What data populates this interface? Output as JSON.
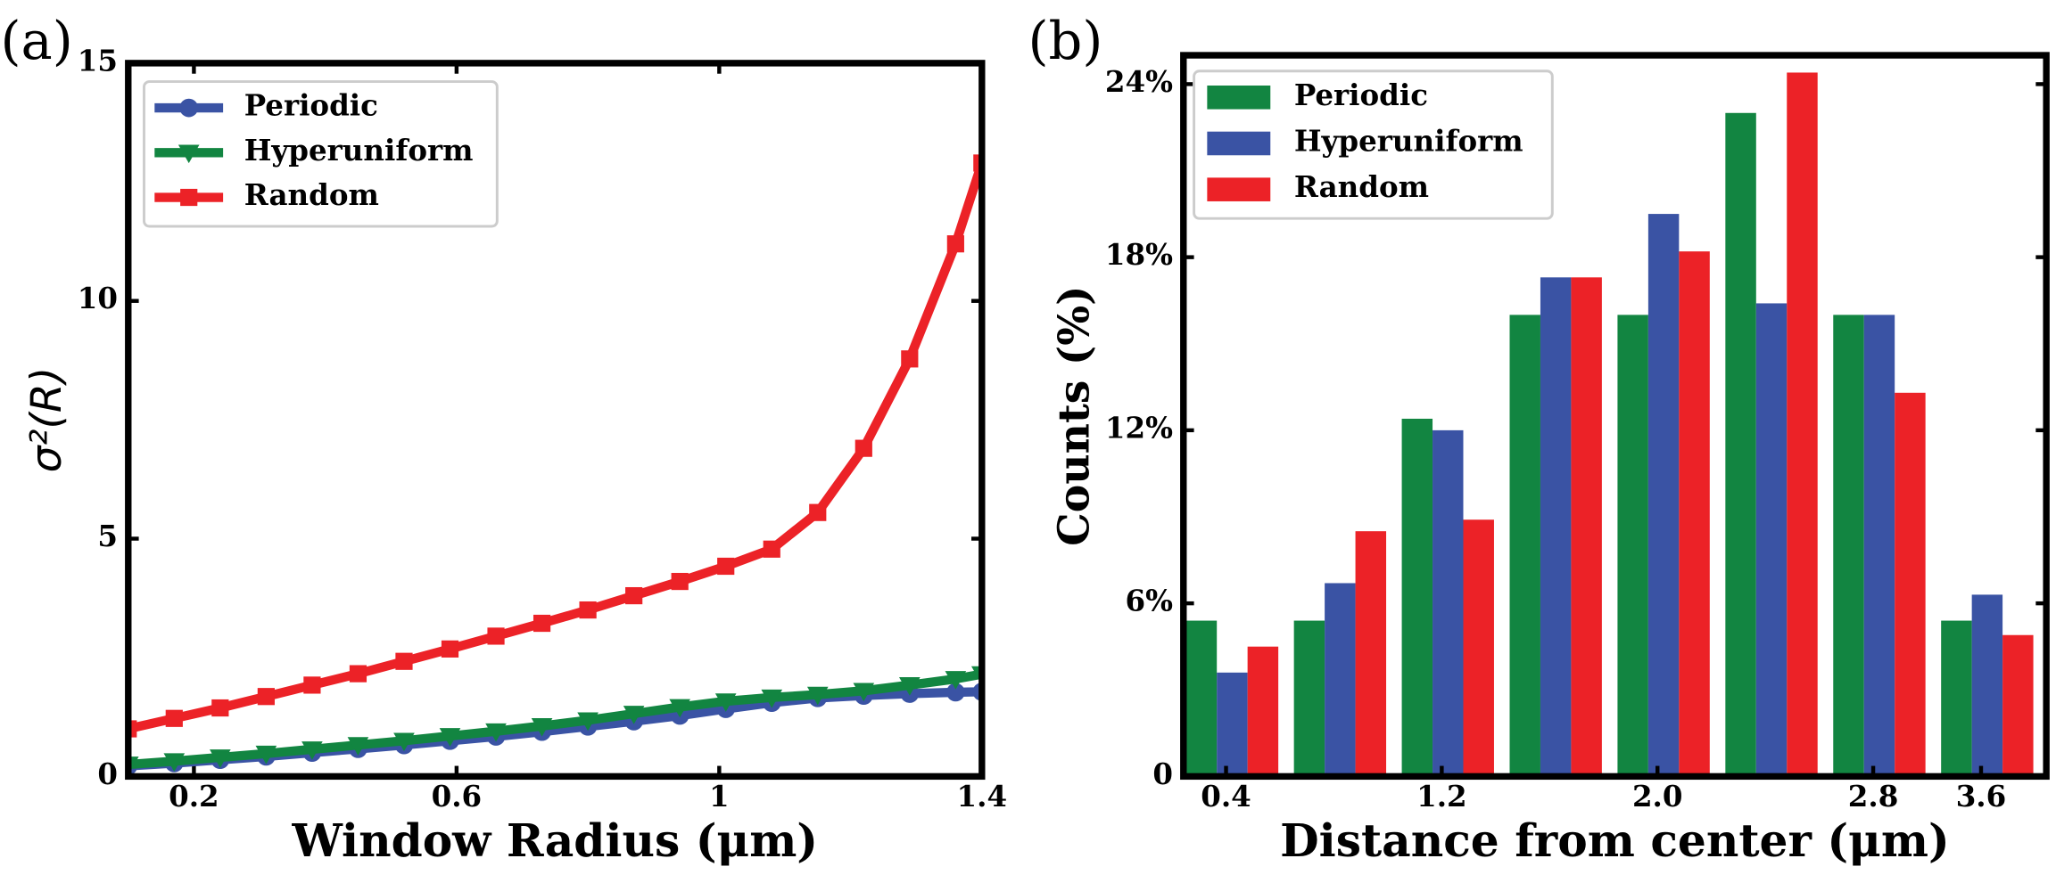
{
  "chart_data": [
    {
      "type": "line",
      "annotation": "(a)",
      "x_label": "Window Radius (μm)",
      "y_label": "σ²(R)",
      "xlim": [
        0.1,
        1.4
      ],
      "ylim": [
        0,
        15
      ],
      "xticks": [
        0.2,
        0.6,
        1,
        1.4
      ],
      "yticks": [
        0,
        5,
        10,
        15
      ],
      "legend": "upper left",
      "x": [
        0.1,
        0.17,
        0.24,
        0.31,
        0.38,
        0.45,
        0.52,
        0.59,
        0.66,
        0.73,
        0.8,
        0.87,
        0.94,
        1.01,
        1.08,
        1.15,
        1.22,
        1.29,
        1.36,
        1.4
      ],
      "series": [
        {
          "name": "Periodic",
          "color": "#3a53a4",
          "marker": "circle",
          "values": [
            0.22,
            0.28,
            0.35,
            0.42,
            0.5,
            0.58,
            0.66,
            0.75,
            0.84,
            0.94,
            1.05,
            1.16,
            1.28,
            1.42,
            1.55,
            1.65,
            1.7,
            1.74,
            1.77,
            1.78
          ]
        },
        {
          "name": "Hyperuniform",
          "color": "#128541",
          "marker": "triangle-down",
          "values": [
            0.25,
            0.32,
            0.4,
            0.48,
            0.57,
            0.66,
            0.75,
            0.85,
            0.95,
            1.06,
            1.18,
            1.32,
            1.46,
            1.58,
            1.66,
            1.72,
            1.8,
            1.92,
            2.05,
            2.15
          ]
        },
        {
          "name": "Random",
          "color": "#ec2227",
          "marker": "square",
          "values": [
            1.0,
            1.22,
            1.44,
            1.68,
            1.92,
            2.16,
            2.42,
            2.68,
            2.95,
            3.22,
            3.5,
            3.8,
            4.1,
            4.42,
            4.78,
            5.55,
            6.9,
            8.78,
            11.2,
            12.9
          ]
        }
      ]
    },
    {
      "type": "bar",
      "annotation": "(b)",
      "x_label": "Distance from center (μm)",
      "y_label": "Counts (%)",
      "ylim": [
        0,
        25
      ],
      "yticks": [
        0,
        {
          "value": 6,
          "label": "6%"
        },
        {
          "value": 12,
          "label": "12%"
        },
        {
          "value": 18,
          "label": "18%"
        },
        {
          "value": 24,
          "label": "24%"
        }
      ],
      "legend": "upper left",
      "categories": [
        "0.4",
        null,
        "1.2",
        null,
        "2.0",
        null,
        "2.8",
        "3.6"
      ],
      "series": [
        {
          "name": "Periodic",
          "color": "#128541",
          "values": [
            5.4,
            5.4,
            12.4,
            16,
            16,
            23,
            16,
            5.4
          ]
        },
        {
          "name": "Hyperuniform",
          "color": "#3a53a4",
          "values": [
            3.6,
            6.7,
            12,
            17.3,
            19.5,
            16.4,
            16,
            6.3
          ]
        },
        {
          "name": "Random",
          "color": "#ec2227",
          "values": [
            4.5,
            8.5,
            8.9,
            17.3,
            18.2,
            24.4,
            13.3,
            4.9
          ]
        }
      ]
    }
  ]
}
